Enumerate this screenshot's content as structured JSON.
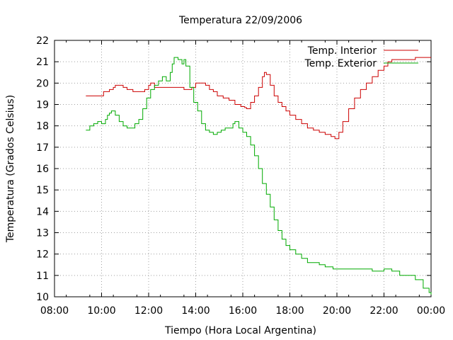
{
  "chart_data": {
    "type": "line",
    "title": "Temperatura 22/09/2006",
    "xlabel": "Tiempo (Hora Local Argentina)",
    "ylabel": "Temperatura (Grados Celsius)",
    "xlim": [
      "08:00",
      "00:00"
    ],
    "ylim": [
      10,
      22
    ],
    "x_ticks": [
      "08:00",
      "10:00",
      "12:00",
      "14:00",
      "16:00",
      "18:00",
      "20:00",
      "22:00",
      "00:00"
    ],
    "y_ticks": [
      "10",
      "11",
      "12",
      "13",
      "14",
      "15",
      "16",
      "17",
      "18",
      "19",
      "20",
      "21",
      "22"
    ],
    "grid": true,
    "legend_position": "top-right",
    "series": [
      {
        "name": "Temp. Interior",
        "color": "#cc0000",
        "points": [
          [
            "09:20",
            19.4
          ],
          [
            "10:00",
            19.4
          ],
          [
            "10:05",
            19.6
          ],
          [
            "10:20",
            19.7
          ],
          [
            "10:30",
            19.8
          ],
          [
            "10:35",
            19.9
          ],
          [
            "10:45",
            19.9
          ],
          [
            "10:55",
            19.8
          ],
          [
            "11:05",
            19.7
          ],
          [
            "11:20",
            19.6
          ],
          [
            "11:40",
            19.6
          ],
          [
            "11:50",
            19.7
          ],
          [
            "12:00",
            19.9
          ],
          [
            "12:05",
            20.0
          ],
          [
            "12:15",
            19.8
          ],
          [
            "12:40",
            19.8
          ],
          [
            "13:20",
            19.8
          ],
          [
            "13:30",
            19.7
          ],
          [
            "13:45",
            19.7
          ],
          [
            "13:50",
            19.8
          ],
          [
            "14:00",
            20.0
          ],
          [
            "14:15",
            20.0
          ],
          [
            "14:25",
            19.9
          ],
          [
            "14:35",
            19.7
          ],
          [
            "14:45",
            19.6
          ],
          [
            "14:55",
            19.4
          ],
          [
            "15:10",
            19.3
          ],
          [
            "15:25",
            19.2
          ],
          [
            "15:40",
            19.0
          ],
          [
            "15:55",
            18.9
          ],
          [
            "16:05",
            18.85
          ],
          [
            "16:10",
            18.8
          ],
          [
            "16:20",
            19.1
          ],
          [
            "16:30",
            19.4
          ],
          [
            "16:40",
            19.8
          ],
          [
            "16:50",
            20.3
          ],
          [
            "16:55",
            20.5
          ],
          [
            "17:00",
            20.4
          ],
          [
            "17:10",
            19.9
          ],
          [
            "17:20",
            19.4
          ],
          [
            "17:30",
            19.1
          ],
          [
            "17:40",
            18.9
          ],
          [
            "17:50",
            18.7
          ],
          [
            "18:00",
            18.5
          ],
          [
            "18:15",
            18.3
          ],
          [
            "18:30",
            18.1
          ],
          [
            "18:45",
            17.9
          ],
          [
            "19:00",
            17.8
          ],
          [
            "19:15",
            17.7
          ],
          [
            "19:30",
            17.6
          ],
          [
            "19:45",
            17.5
          ],
          [
            "19:55",
            17.4
          ],
          [
            "20:05",
            17.7
          ],
          [
            "20:15",
            18.2
          ],
          [
            "20:30",
            18.8
          ],
          [
            "20:45",
            19.3
          ],
          [
            "21:00",
            19.7
          ],
          [
            "21:15",
            20.0
          ],
          [
            "21:30",
            20.3
          ],
          [
            "21:45",
            20.6
          ],
          [
            "22:00",
            20.8
          ],
          [
            "22:10",
            21.0
          ],
          [
            "22:20",
            21.1
          ],
          [
            "22:40",
            21.1
          ],
          [
            "23:00",
            21.1
          ],
          [
            "23:20",
            21.2
          ],
          [
            "23:40",
            21.2
          ],
          [
            "00:00",
            21.2
          ]
        ]
      },
      {
        "name": "Temp. Exterior",
        "color": "#00aa00",
        "points": [
          [
            "09:20",
            17.8
          ],
          [
            "09:30",
            18.0
          ],
          [
            "09:40",
            18.1
          ],
          [
            "09:50",
            18.2
          ],
          [
            "10:00",
            18.1
          ],
          [
            "10:10",
            18.3
          ],
          [
            "10:15",
            18.5
          ],
          [
            "10:20",
            18.6
          ],
          [
            "10:25",
            18.7
          ],
          [
            "10:35",
            18.5
          ],
          [
            "10:45",
            18.2
          ],
          [
            "10:55",
            18.0
          ],
          [
            "11:05",
            17.9
          ],
          [
            "11:15",
            17.9
          ],
          [
            "11:25",
            18.1
          ],
          [
            "11:35",
            18.3
          ],
          [
            "11:45",
            18.8
          ],
          [
            "11:55",
            19.3
          ],
          [
            "12:05",
            19.7
          ],
          [
            "12:15",
            19.9
          ],
          [
            "12:25",
            20.1
          ],
          [
            "12:35",
            20.3
          ],
          [
            "12:45",
            20.1
          ],
          [
            "12:55",
            20.5
          ],
          [
            "13:00",
            20.9
          ],
          [
            "13:05",
            21.2
          ],
          [
            "13:15",
            21.1
          ],
          [
            "13:25",
            20.9
          ],
          [
            "13:30",
            21.1
          ],
          [
            "13:35",
            20.8
          ],
          [
            "13:45",
            19.8
          ],
          [
            "13:55",
            19.1
          ],
          [
            "14:05",
            18.7
          ],
          [
            "14:15",
            18.1
          ],
          [
            "14:25",
            17.8
          ],
          [
            "14:35",
            17.7
          ],
          [
            "14:45",
            17.6
          ],
          [
            "14:55",
            17.7
          ],
          [
            "15:05",
            17.8
          ],
          [
            "15:15",
            17.9
          ],
          [
            "15:25",
            17.9
          ],
          [
            "15:35",
            18.1
          ],
          [
            "15:40",
            18.2
          ],
          [
            "15:50",
            17.9
          ],
          [
            "16:00",
            17.7
          ],
          [
            "16:10",
            17.5
          ],
          [
            "16:20",
            17.1
          ],
          [
            "16:30",
            16.6
          ],
          [
            "16:40",
            16.0
          ],
          [
            "16:50",
            15.3
          ],
          [
            "17:00",
            14.8
          ],
          [
            "17:10",
            14.2
          ],
          [
            "17:20",
            13.6
          ],
          [
            "17:30",
            13.1
          ],
          [
            "17:40",
            12.7
          ],
          [
            "17:50",
            12.4
          ],
          [
            "18:00",
            12.2
          ],
          [
            "18:15",
            12.0
          ],
          [
            "18:30",
            11.8
          ],
          [
            "18:45",
            11.6
          ],
          [
            "19:00",
            11.6
          ],
          [
            "19:15",
            11.5
          ],
          [
            "19:30",
            11.4
          ],
          [
            "19:50",
            11.3
          ],
          [
            "20:30",
            11.3
          ],
          [
            "21:00",
            11.3
          ],
          [
            "21:30",
            11.2
          ],
          [
            "22:00",
            11.3
          ],
          [
            "22:20",
            11.2
          ],
          [
            "22:40",
            11.0
          ],
          [
            "23:00",
            11.0
          ],
          [
            "23:20",
            10.8
          ],
          [
            "23:40",
            10.4
          ],
          [
            "23:55",
            10.2
          ],
          [
            "00:00",
            10.1
          ]
        ]
      }
    ]
  }
}
